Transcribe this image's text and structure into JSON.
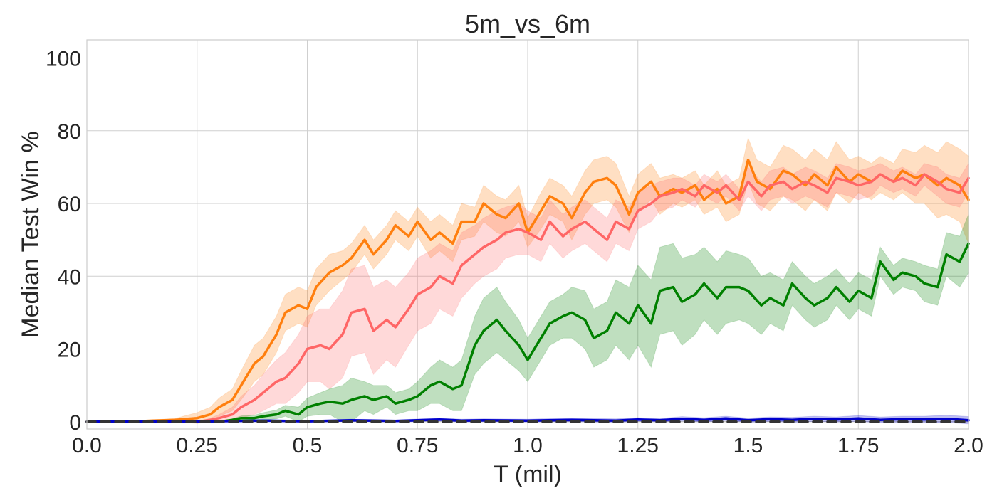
{
  "chart_data": {
    "type": "line",
    "title": "5m_vs_6m",
    "xlabel": "T (mil)",
    "ylabel": "Median Test Win %",
    "xlim": [
      0,
      2.0
    ],
    "ylim": [
      -2,
      105
    ],
    "xticks": [
      0,
      0.25,
      0.5,
      0.75,
      1.0,
      1.25,
      1.5,
      1.75,
      2.0
    ],
    "xtick_labels": [
      "0.0",
      "0.25",
      "0.5",
      "0.75",
      "1.0",
      "1.25",
      "1.5",
      "1.75",
      "2.0"
    ],
    "yticks": [
      0,
      20,
      40,
      60,
      80,
      100
    ],
    "ytick_labels": [
      "0",
      "20",
      "40",
      "60",
      "80",
      "100"
    ],
    "grid": true,
    "legend": "none",
    "series": [
      {
        "color": "#ff7f0e",
        "x": [
          0,
          0.1,
          0.15,
          0.2,
          0.25,
          0.28,
          0.3,
          0.33,
          0.35,
          0.38,
          0.4,
          0.43,
          0.45,
          0.48,
          0.5,
          0.52,
          0.55,
          0.58,
          0.6,
          0.63,
          0.65,
          0.68,
          0.7,
          0.73,
          0.75,
          0.78,
          0.8,
          0.83,
          0.85,
          0.88,
          0.9,
          0.93,
          0.95,
          0.98,
          1.0,
          1.03,
          1.05,
          1.08,
          1.1,
          1.13,
          1.15,
          1.18,
          1.2,
          1.23,
          1.25,
          1.28,
          1.3,
          1.33,
          1.35,
          1.38,
          1.4,
          1.43,
          1.45,
          1.48,
          1.5,
          1.52,
          1.55,
          1.58,
          1.6,
          1.63,
          1.65,
          1.68,
          1.7,
          1.73,
          1.75,
          1.78,
          1.8,
          1.83,
          1.85,
          1.88,
          1.9,
          1.93,
          1.95,
          1.98,
          2.0
        ],
        "y": [
          0,
          0,
          0.3,
          0.5,
          1,
          2,
          4,
          6,
          10,
          16,
          18,
          24,
          30,
          32,
          31,
          37,
          41,
          43,
          45,
          50,
          46,
          50,
          54,
          51,
          55,
          50,
          52,
          49,
          55,
          55,
          60,
          57,
          56,
          60,
          52,
          58,
          62,
          60,
          56,
          63,
          66,
          67,
          65,
          57,
          63,
          66,
          62,
          64,
          63,
          65,
          61,
          64,
          60,
          62,
          72,
          66,
          64,
          69,
          68,
          65,
          68,
          65,
          70,
          66,
          68,
          66,
          68,
          66,
          69,
          67,
          68,
          65,
          67,
          65,
          61
        ],
        "band_width": [
          0,
          0,
          0.2,
          0.4,
          1.5,
          2,
          2.5,
          3,
          4,
          5,
          5,
          5,
          5,
          5,
          5,
          5,
          5,
          4,
          4,
          4,
          4,
          4,
          4,
          4,
          4,
          5,
          5,
          5,
          5,
          4,
          5,
          5,
          5,
          5,
          4,
          5,
          5,
          5,
          6,
          6,
          6,
          6,
          6,
          5,
          5,
          5,
          5,
          4,
          4,
          4,
          4,
          5,
          5,
          5,
          6,
          6,
          6,
          7,
          7,
          7,
          7,
          7,
          7,
          6,
          5,
          5,
          5,
          5,
          6,
          7,
          8,
          9,
          10,
          10,
          12
        ]
      },
      {
        "color": "#ff6666",
        "x": [
          0,
          0.25,
          0.28,
          0.3,
          0.33,
          0.35,
          0.38,
          0.4,
          0.43,
          0.45,
          0.48,
          0.5,
          0.53,
          0.55,
          0.58,
          0.6,
          0.63,
          0.65,
          0.68,
          0.7,
          0.73,
          0.75,
          0.78,
          0.8,
          0.83,
          0.85,
          0.88,
          0.9,
          0.93,
          0.95,
          0.98,
          1.0,
          1.03,
          1.05,
          1.08,
          1.1,
          1.13,
          1.15,
          1.18,
          1.2,
          1.23,
          1.25,
          1.28,
          1.3,
          1.33,
          1.35,
          1.38,
          1.4,
          1.43,
          1.45,
          1.48,
          1.5,
          1.53,
          1.55,
          1.58,
          1.6,
          1.63,
          1.65,
          1.68,
          1.7,
          1.73,
          1.75,
          1.78,
          1.8,
          1.83,
          1.85,
          1.88,
          1.9,
          1.93,
          1.95,
          1.98,
          2.0
        ],
        "y": [
          0,
          0,
          0.5,
          1,
          2,
          4,
          6,
          8,
          11,
          12,
          16,
          20,
          21,
          20,
          24,
          30,
          31,
          25,
          28,
          26,
          31,
          35,
          37,
          40,
          38,
          43,
          46,
          48,
          50,
          52,
          53,
          52,
          50,
          55,
          51,
          53,
          55,
          53,
          50,
          55,
          53,
          58,
          60,
          62,
          63,
          64,
          62,
          65,
          63,
          65,
          61,
          66,
          62,
          65,
          66,
          64,
          66,
          65,
          63,
          67,
          66,
          65,
          66,
          68,
          66,
          67,
          65,
          68,
          66,
          64,
          63,
          67
        ],
        "band_width": [
          0,
          0,
          0.5,
          1,
          2,
          3,
          4,
          5,
          6,
          7,
          8,
          9,
          10,
          11,
          12,
          12,
          12,
          12,
          11,
          11,
          10,
          10,
          10,
          9,
          9,
          9,
          8,
          8,
          8,
          7,
          7,
          6,
          6,
          6,
          6,
          6,
          6,
          6,
          6,
          6,
          6,
          5,
          5,
          4,
          4,
          3,
          3,
          3,
          3,
          3,
          3,
          4,
          4,
          4,
          4,
          4,
          4,
          4,
          4,
          4,
          4,
          4,
          4,
          3,
          3,
          3,
          3,
          3,
          4,
          4,
          4,
          4
        ]
      },
      {
        "color": "#008000",
        "x": [
          0,
          0.3,
          0.33,
          0.35,
          0.38,
          0.4,
          0.43,
          0.45,
          0.48,
          0.5,
          0.53,
          0.55,
          0.58,
          0.6,
          0.63,
          0.65,
          0.68,
          0.7,
          0.73,
          0.75,
          0.78,
          0.8,
          0.83,
          0.85,
          0.88,
          0.9,
          0.93,
          0.95,
          0.98,
          1.0,
          1.03,
          1.05,
          1.08,
          1.1,
          1.13,
          1.15,
          1.18,
          1.2,
          1.23,
          1.25,
          1.28,
          1.3,
          1.33,
          1.35,
          1.38,
          1.4,
          1.43,
          1.45,
          1.48,
          1.5,
          1.53,
          1.55,
          1.58,
          1.6,
          1.63,
          1.65,
          1.68,
          1.7,
          1.73,
          1.75,
          1.78,
          1.8,
          1.83,
          1.85,
          1.88,
          1.9,
          1.93,
          1.95,
          1.98,
          2.0
        ],
        "y": [
          0,
          0,
          0.5,
          1,
          1,
          1.5,
          2,
          3,
          2,
          4,
          5,
          5.5,
          5,
          6,
          7,
          6,
          7,
          5,
          6,
          7,
          10,
          11,
          9,
          10,
          21,
          25,
          28,
          25,
          21,
          17,
          23,
          27,
          29,
          30,
          28,
          23,
          25,
          30,
          27,
          32,
          27,
          36,
          37,
          33,
          35,
          38,
          34,
          37,
          37,
          36,
          32,
          34,
          32,
          38,
          34,
          32,
          34,
          37,
          33,
          36,
          34,
          44,
          39,
          41,
          40,
          38,
          37,
          46,
          44,
          49
        ],
        "band_width": [
          0,
          0,
          0.3,
          0.6,
          0.8,
          1,
          1.2,
          1.5,
          2,
          2.5,
          3,
          3.5,
          5,
          6,
          4,
          4,
          3,
          3,
          3,
          4,
          5,
          6,
          6,
          7,
          8,
          9,
          9,
          8,
          7,
          6,
          6,
          6,
          6,
          7,
          8,
          8,
          8,
          9,
          10,
          11,
          12,
          12,
          12,
          12,
          11,
          10,
          10,
          10,
          9,
          9,
          8,
          7,
          7,
          6,
          6,
          6,
          6,
          5,
          5,
          5,
          5,
          4,
          4,
          4,
          4,
          5,
          5,
          6,
          7,
          8
        ]
      },
      {
        "color": "#0000cc",
        "x": [
          0,
          0.2,
          0.4,
          0.5,
          0.6,
          0.7,
          0.8,
          0.85,
          0.9,
          1.0,
          1.1,
          1.2,
          1.25,
          1.3,
          1.35,
          1.4,
          1.45,
          1.5,
          1.55,
          1.6,
          1.65,
          1.7,
          1.75,
          1.8,
          1.85,
          1.9,
          1.95,
          2.0
        ],
        "y": [
          0,
          0,
          0.3,
          0.1,
          0.4,
          0.2,
          0.6,
          0.3,
          0.4,
          0.3,
          0.5,
          0.3,
          0.6,
          0.4,
          0.8,
          0.5,
          0.9,
          0.4,
          0.7,
          0.5,
          0.8,
          0.6,
          0.9,
          0.5,
          0.7,
          0.6,
          0.8,
          0.4
        ],
        "band_width": [
          0,
          0,
          0.2,
          0.2,
          0.3,
          0.3,
          0.4,
          0.4,
          0.4,
          0.4,
          0.5,
          0.5,
          0.5,
          0.5,
          0.6,
          0.6,
          0.6,
          0.6,
          0.6,
          0.7,
          0.7,
          0.7,
          0.8,
          0.8,
          0.8,
          0.9,
          1,
          1
        ]
      },
      {
        "color": "#333333",
        "dashed": true,
        "x": [
          0,
          0.3,
          0.6,
          0.9,
          1.2,
          1.5,
          1.8,
          2.0
        ],
        "y": [
          0,
          0,
          0,
          0,
          0,
          0,
          0,
          0
        ],
        "band_width": [
          0,
          0,
          0,
          0,
          0,
          0,
          0,
          0
        ]
      }
    ]
  }
}
